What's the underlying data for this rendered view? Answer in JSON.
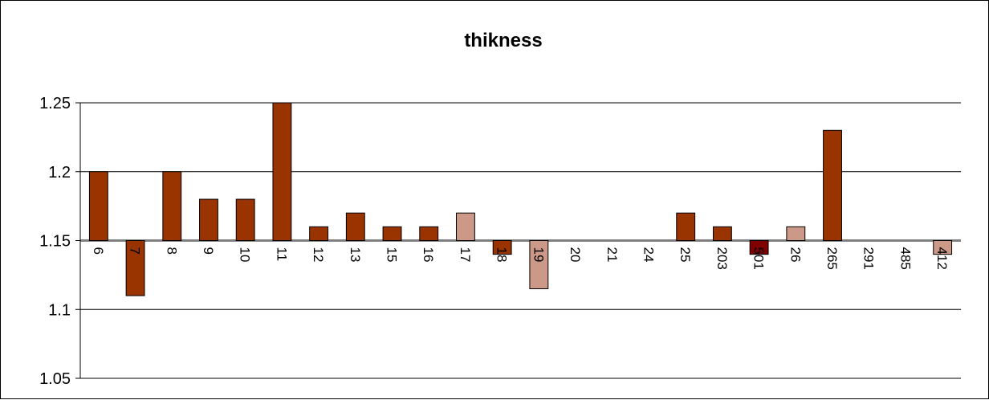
{
  "chart_data": {
    "type": "bar",
    "title": "thikness",
    "xlabel": "",
    "ylabel": "",
    "ylim": [
      1.05,
      1.25
    ],
    "baseline": 1.15,
    "grid": true,
    "legend": "none",
    "yticks": [
      "1.05",
      "1.1",
      "1.15",
      "1.2",
      "1.25"
    ],
    "categories": [
      "6",
      "7",
      "8",
      "9",
      "10",
      "11",
      "12",
      "13",
      "15",
      "16",
      "17",
      "18",
      "19",
      "20",
      "21",
      "24",
      "25",
      "203",
      "501",
      "26",
      "265",
      "291",
      "485",
      "412"
    ],
    "values": [
      1.2,
      1.11,
      1.2,
      1.18,
      1.18,
      1.25,
      1.16,
      1.17,
      1.16,
      1.16,
      1.17,
      1.14,
      1.115,
      1.15,
      1.15,
      1.15,
      1.17,
      1.16,
      1.14,
      1.16,
      1.23,
      1.15,
      1.15,
      1.14
    ],
    "bar_colors": [
      "#993300",
      "#993300",
      "#993300",
      "#993300",
      "#993300",
      "#993300",
      "#993300",
      "#993300",
      "#993300",
      "#993300",
      "#cc9988",
      "#993300",
      "#cc9988",
      "#993300",
      "#993300",
      "#993300",
      "#993300",
      "#993300",
      "#800000",
      "#cc9988",
      "#993300",
      "#993300",
      "#993300",
      "#cc9988"
    ],
    "colors": {
      "gridline": "#000000",
      "plot_background": "#ffffff"
    }
  }
}
